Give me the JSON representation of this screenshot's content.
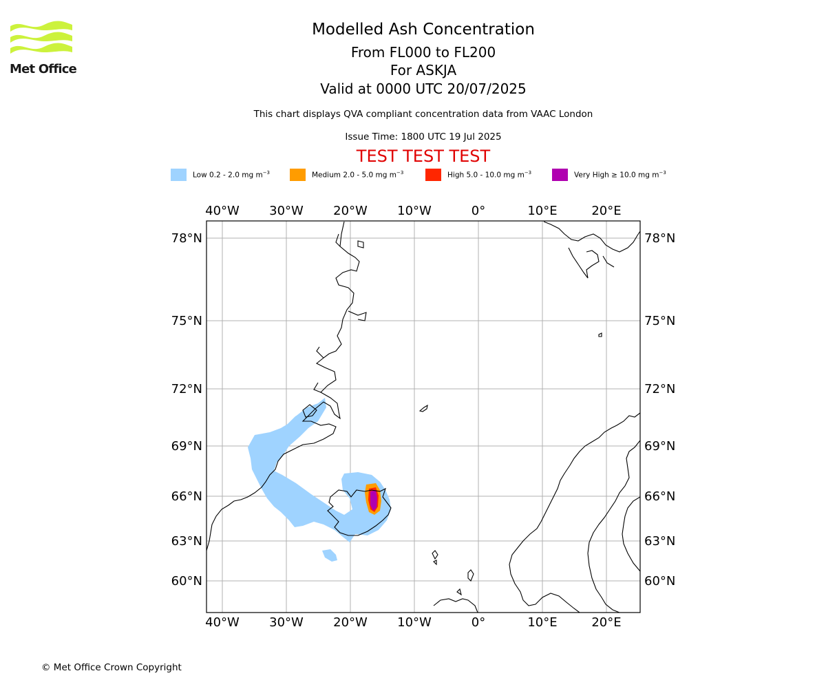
{
  "logo": {
    "text": "Met Office",
    "color": "#ccf23c"
  },
  "header": {
    "title": "Modelled Ash Concentration",
    "levels": "From FL000 to FL200",
    "volcano": "For ASKJA",
    "valid": "Valid at 0000 UTC 20/07/2025",
    "description": "This chart displays QVA compliant concentration data from VAAC London",
    "issue_time": "Issue Time: 1800 UTC 19 Jul 2025",
    "test_banner": "TEST TEST TEST"
  },
  "legend": [
    {
      "label": "Low 0.2 - 2.0 mg m",
      "color": "#9fd3ff"
    },
    {
      "label": "Medium 2.0 - 5.0 mg m",
      "color": "#ff9c00"
    },
    {
      "label": "High 5.0 - 10.0 mg m",
      "color": "#ff2600"
    },
    {
      "label": "Very High ≥ 10.0 mg m",
      "color": "#b000b0"
    }
  ],
  "legend_unit_exponent": "−3",
  "map": {
    "longitude_labels": [
      "40°W",
      "30°W",
      "20°W",
      "10°W",
      "0°",
      "10°E",
      "20°E"
    ],
    "latitude_labels": [
      "78°N",
      "75°N",
      "72°N",
      "69°N",
      "66°N",
      "63°N",
      "60°N"
    ],
    "grid": true
  },
  "footer": {
    "copyright": "© Met Office Crown Copyright"
  }
}
